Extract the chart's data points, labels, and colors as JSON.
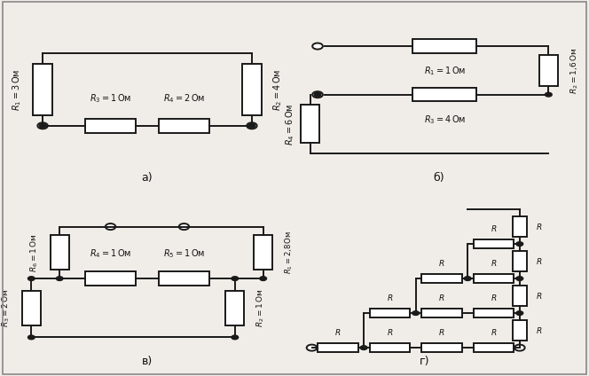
{
  "bg_color": "#f0ede8",
  "line_color": "#1a1a1a",
  "label_color": "#111111",
  "sublabels": [
    "а)",
    "б)",
    "в)",
    "г)"
  ],
  "lw": 1.4,
  "fs": 7.0
}
